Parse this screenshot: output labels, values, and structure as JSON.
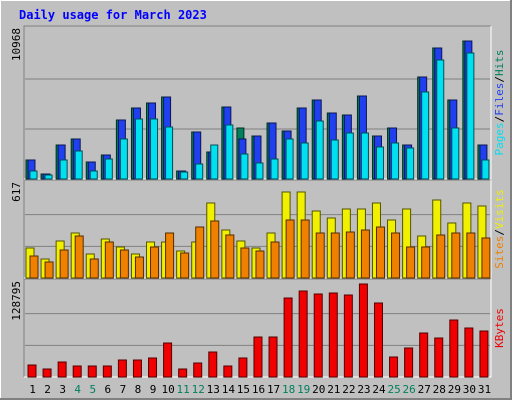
{
  "chart_data": [
    {
      "type": "bar",
      "title": "Daily usage for March 2023",
      "categories": [
        "1",
        "2",
        "3",
        "4",
        "5",
        "6",
        "7",
        "8",
        "9",
        "10",
        "11",
        "12",
        "13",
        "14",
        "15",
        "16",
        "17",
        "18",
        "19",
        "20",
        "21",
        "22",
        "23",
        "24",
        "25",
        "26",
        "27",
        "28",
        "29",
        "30",
        "31"
      ],
      "weekend_days": [
        "4",
        "5",
        "11",
        "12",
        "18",
        "19",
        "25",
        "26"
      ],
      "y_max_label": "10968",
      "ylim": [
        0,
        10968
      ],
      "series": [
        {
          "name": "Hits",
          "color": "#00805c",
          "values": [
            1400,
            400,
            2500,
            3000,
            1300,
            1800,
            4400,
            5300,
            5700,
            6100,
            600,
            3500,
            2000,
            5400,
            3800,
            3200,
            4200,
            3600,
            5300,
            5900,
            4900,
            4800,
            6200,
            3200,
            3800,
            2500,
            7600,
            9800,
            5900,
            10300,
            2500
          ]
        },
        {
          "name": "Files",
          "color": "#2040f0",
          "values": [
            1400,
            400,
            2500,
            3000,
            1300,
            1800,
            4400,
            5300,
            5700,
            6100,
            600,
            3500,
            2000,
            5400,
            3000,
            3200,
            4200,
            3600,
            5300,
            5900,
            4900,
            4800,
            6200,
            3200,
            3800,
            2500,
            7600,
            9800,
            5900,
            10300,
            2500
          ]
        },
        {
          "name": "Pages",
          "color": "#00e0f0",
          "values": [
            600,
            300,
            1400,
            2100,
            600,
            1500,
            3000,
            4500,
            4500,
            3900,
            500,
            1100,
            2500,
            4000,
            1900,
            1200,
            1500,
            3000,
            2700,
            4300,
            2900,
            3400,
            3400,
            2400,
            2700,
            2300,
            6500,
            8900,
            3800,
            9400,
            1400
          ]
        }
      ],
      "y_axis_title_parts": [
        "Pages",
        "Files",
        "Hits"
      ]
    },
    {
      "type": "bar",
      "categories": [
        "1",
        "2",
        "3",
        "4",
        "5",
        "6",
        "7",
        "8",
        "9",
        "10",
        "11",
        "12",
        "13",
        "14",
        "15",
        "16",
        "17",
        "18",
        "19",
        "20",
        "21",
        "22",
        "23",
        "24",
        "25",
        "26",
        "27",
        "28",
        "29",
        "30",
        "31"
      ],
      "y_max_label": "617",
      "ylim": [
        0,
        617
      ],
      "series": [
        {
          "name": "Visits",
          "color": "#f0f000",
          "values": [
            200,
            130,
            250,
            300,
            160,
            260,
            210,
            160,
            240,
            240,
            180,
            240,
            500,
            320,
            250,
            200,
            300,
            580,
            580,
            450,
            400,
            460,
            460,
            500,
            390,
            460,
            280,
            520,
            370,
            500,
            480
          ]
        },
        {
          "name": "Sites",
          "color": "#f08000",
          "values": [
            150,
            110,
            190,
            285,
            130,
            240,
            190,
            140,
            210,
            300,
            170,
            340,
            380,
            290,
            200,
            180,
            240,
            390,
            390,
            300,
            300,
            310,
            320,
            340,
            300,
            210,
            210,
            290,
            300,
            300,
            265
          ]
        }
      ],
      "y_axis_title_parts": [
        "Sites",
        "Visits"
      ]
    },
    {
      "type": "bar",
      "categories": [
        "1",
        "2",
        "3",
        "4",
        "5",
        "6",
        "7",
        "8",
        "9",
        "10",
        "11",
        "12",
        "13",
        "14",
        "15",
        "16",
        "17",
        "18",
        "19",
        "20",
        "21",
        "22",
        "23",
        "24",
        "25",
        "26",
        "27",
        "28",
        "29",
        "30",
        "31"
      ],
      "y_max_label": "128795",
      "ylim": [
        0,
        128795
      ],
      "series": [
        {
          "name": "KBytes",
          "color": "#f00000",
          "values": [
            17000,
            11000,
            21000,
            15000,
            15000,
            15000,
            24000,
            24000,
            27000,
            48000,
            11000,
            20000,
            35000,
            16000,
            26000,
            56000,
            56000,
            110000,
            121000,
            116000,
            117000,
            115000,
            130000,
            104000,
            28000,
            41000,
            61000,
            55000,
            80000,
            68000,
            64000
          ]
        }
      ],
      "y_axis_title_parts": [
        "KBytes"
      ]
    }
  ]
}
